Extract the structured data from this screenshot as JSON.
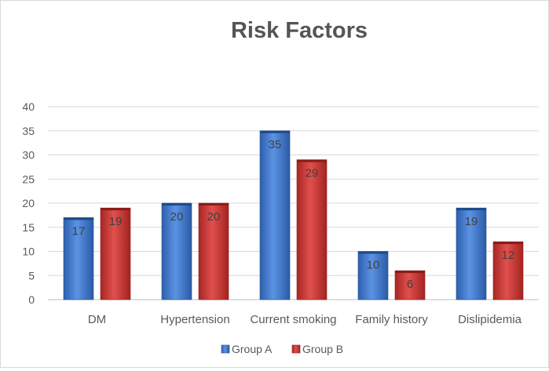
{
  "chart_data": {
    "type": "bar",
    "title": "Risk Factors",
    "categories": [
      "DM",
      "Hypertension",
      "Current smoking",
      "Family history",
      "Dislipidemia"
    ],
    "series": [
      {
        "name": "Group A",
        "values": [
          17,
          20,
          35,
          10,
          19
        ],
        "color": "#4a7fd0"
      },
      {
        "name": "Group B",
        "values": [
          19,
          20,
          29,
          6,
          12
        ],
        "color": "#cf3c3a"
      }
    ],
    "xlabel": "",
    "ylabel": "",
    "ylim": [
      0,
      40
    ],
    "yticks": [
      0,
      5,
      10,
      15,
      20,
      25,
      30,
      35,
      40
    ],
    "grid": true,
    "legend_position": "bottom",
    "data_labels": true
  }
}
